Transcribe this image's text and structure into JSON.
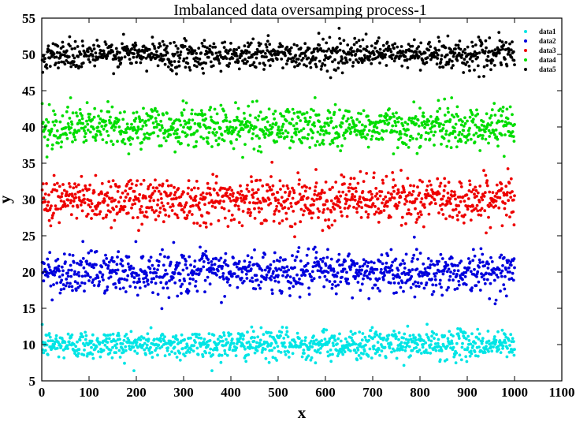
{
  "chart_data": {
    "type": "scatter",
    "title": "Imbalanced data oversamping process-1",
    "xlabel": "x",
    "ylabel": "y",
    "xlim": [
      0,
      1100
    ],
    "ylim": [
      5,
      55
    ],
    "xticks": [
      "0",
      "100",
      "200",
      "300",
      "400",
      "500",
      "600",
      "700",
      "800",
      "900",
      "1000",
      "1100"
    ],
    "yticks": [
      "5",
      "10",
      "15",
      "20",
      "25",
      "30",
      "35",
      "40",
      "45",
      "50",
      "55"
    ],
    "grid": false,
    "legend_position": "top-right",
    "series": [
      {
        "name": "data1",
        "color": "#00e5e5",
        "x_range": [
          1,
          1000
        ],
        "count": 1000,
        "center": 10,
        "spread": 1.0
      },
      {
        "name": "data2",
        "color": "#0000dd",
        "x_range": [
          1,
          1000
        ],
        "count": 1000,
        "center": 20,
        "spread": 1.4
      },
      {
        "name": "data3",
        "color": "#ee0000",
        "x_range": [
          1,
          1000
        ],
        "count": 1000,
        "center": 30,
        "spread": 1.6
      },
      {
        "name": "data4",
        "color": "#00dd00",
        "x_range": [
          1,
          1000
        ],
        "count": 1000,
        "center": 40,
        "spread": 1.4
      },
      {
        "name": "data5",
        "color": "#000000",
        "x_range": [
          1,
          1000
        ],
        "count": 1000,
        "center": 50,
        "spread": 1.0
      }
    ]
  }
}
